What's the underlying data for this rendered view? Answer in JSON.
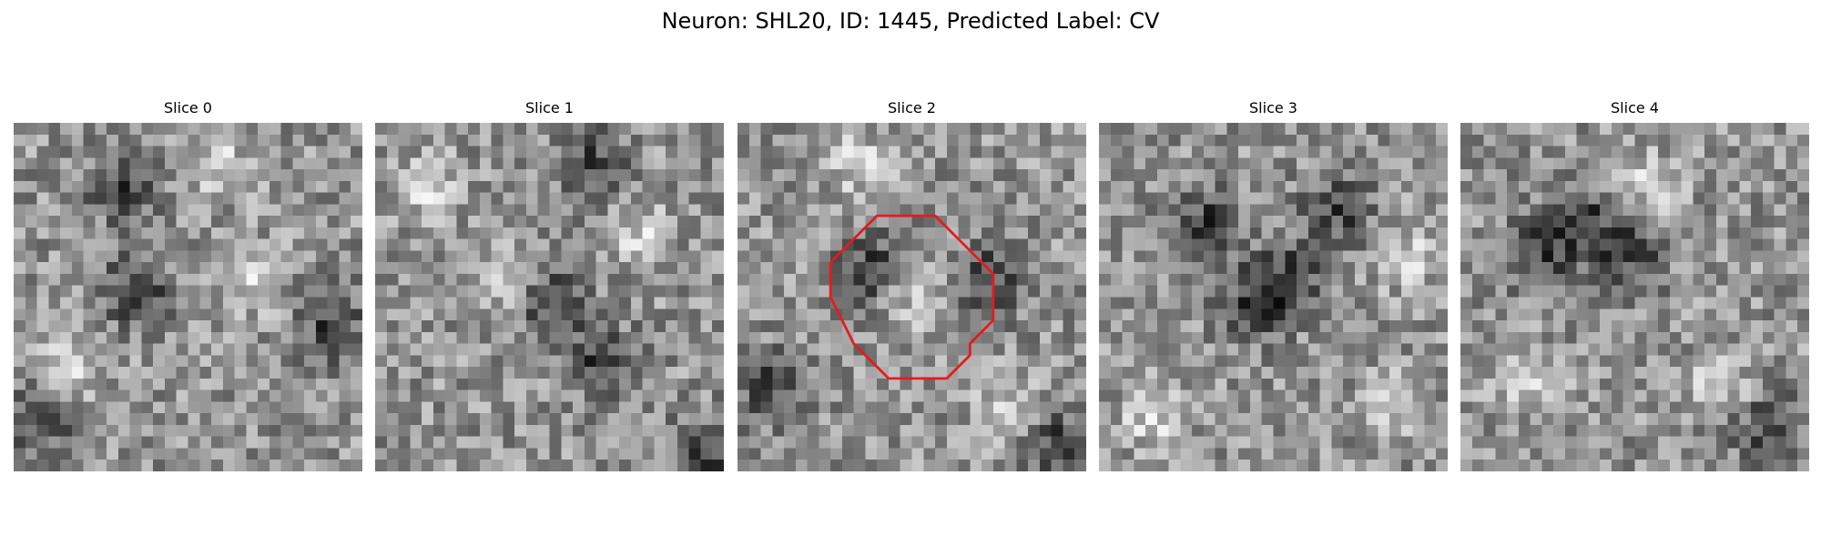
{
  "figure": {
    "title": "Neuron: SHL20, ID: 1445, Predicted Label: CV",
    "colormap": "grayscale",
    "grid": 30,
    "outline_color": "#e8191d"
  },
  "slices": [
    {
      "title": "Slice 0",
      "seed": 11,
      "dark_blobs": [
        [
          10,
          14
        ],
        [
          27,
          17
        ],
        [
          2,
          25
        ],
        [
          9,
          5
        ]
      ],
      "light_blobs": [
        [
          20,
          13
        ],
        [
          4,
          21
        ],
        [
          17,
          3
        ]
      ],
      "has_outline": false
    },
    {
      "title": "Slice 1",
      "seed": 23,
      "dark_blobs": [
        [
          18,
          3
        ],
        [
          15,
          15
        ],
        [
          19,
          20
        ],
        [
          28,
          28
        ]
      ],
      "light_blobs": [
        [
          10,
          13
        ],
        [
          22,
          9
        ],
        [
          4,
          5
        ]
      ],
      "has_outline": false
    },
    {
      "title": "Slice 2",
      "seed": 37,
      "dark_blobs": [
        [
          11,
          12
        ],
        [
          21,
          13
        ],
        [
          2,
          22
        ],
        [
          27,
          27
        ]
      ],
      "light_blobs": [
        [
          15,
          15
        ],
        [
          10,
          3
        ],
        [
          23,
          24
        ]
      ],
      "has_outline": true
    },
    {
      "title": "Slice 3",
      "seed": 53,
      "dark_blobs": [
        [
          9,
          8
        ],
        [
          13,
          15
        ],
        [
          16,
          13
        ],
        [
          20,
          7
        ]
      ],
      "light_blobs": [
        [
          26,
          11
        ],
        [
          4,
          25
        ],
        [
          25,
          24
        ]
      ],
      "has_outline": false
    },
    {
      "title": "Slice 4",
      "seed": 71,
      "dark_blobs": [
        [
          14,
          11
        ],
        [
          6,
          11
        ],
        [
          26,
          26
        ],
        [
          10,
          8
        ]
      ],
      "light_blobs": [
        [
          16,
          5
        ],
        [
          22,
          22
        ],
        [
          6,
          22
        ]
      ],
      "has_outline": false
    }
  ],
  "outline_cells": [
    [
      10,
      10
    ],
    [
      12,
      8
    ],
    [
      17,
      8
    ],
    [
      20,
      11
    ],
    [
      22,
      13
    ],
    [
      22,
      17
    ],
    [
      20,
      19
    ],
    [
      20,
      20
    ],
    [
      18,
      22
    ],
    [
      13,
      22
    ],
    [
      10,
      19
    ],
    [
      9,
      17
    ],
    [
      8,
      15
    ],
    [
      8,
      12
    ],
    [
      10,
      10
    ]
  ]
}
